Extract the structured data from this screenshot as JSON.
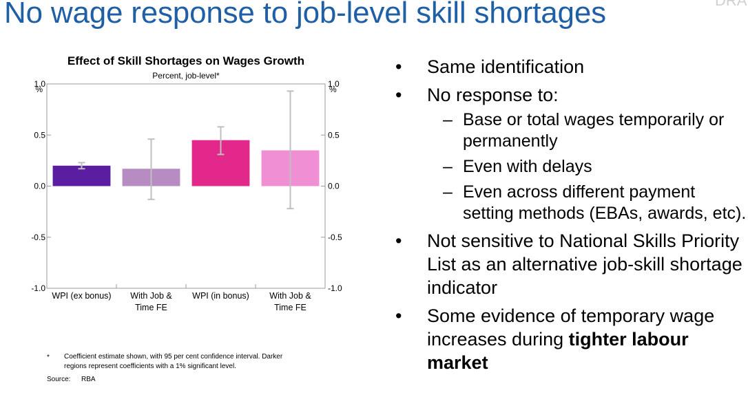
{
  "slide": {
    "title": "No wage response to job-level skill shortages",
    "corner_text": "DRA"
  },
  "chart_data": {
    "type": "bar",
    "title": "Effect of Skill Shortages on Wages Growth",
    "subtitle": "Percent, job-level*",
    "unit_left": "%",
    "unit_right": "%",
    "categories": [
      "WPI (ex bonus)",
      "With Job & Time FE",
      "WPI (in bonus)",
      "With Job & Time FE"
    ],
    "category_lines": [
      [
        "WPI (ex bonus)"
      ],
      [
        "With Job &",
        "Time FE"
      ],
      [
        "WPI (in bonus)"
      ],
      [
        "With Job &",
        "Time FE"
      ]
    ],
    "values": [
      0.2,
      0.17,
      0.45,
      0.35
    ],
    "ci_low": [
      0.17,
      -0.13,
      0.31,
      -0.22
    ],
    "ci_high": [
      0.23,
      0.46,
      0.58,
      0.93
    ],
    "colors": [
      "#5b1ea3",
      "#b78cc2",
      "#e2288a",
      "#f08fd4"
    ],
    "ci_color": "#bfbfbf",
    "ylim": [
      -1.0,
      1.0
    ],
    "yticks": [
      "1.0",
      "0.5",
      "0.0",
      "-0.5",
      "-1.0"
    ],
    "grid": false,
    "footnote_marker": "*",
    "footnote_lines": [
      "Coefficient estimate shown, with 95 per cent confidence interval. Darker",
      "regions represent coefficients with a 1% significant level."
    ],
    "source_label": "Source:",
    "source_value": "RBA"
  },
  "bullets": [
    {
      "text": "Same identification"
    },
    {
      "text": "No response to:",
      "sub": [
        "Base or total wages temporarily or permanently",
        "Even with delays",
        "Even across different payment setting methods (EBAs, awards, etc)."
      ]
    },
    {
      "text": "Not sensitive to National Skills Priority List as an alternative job-skill shortage indicator"
    },
    {
      "text": "Some evidence of temporary wage increases during ",
      "bold": "tighter labour market"
    }
  ]
}
